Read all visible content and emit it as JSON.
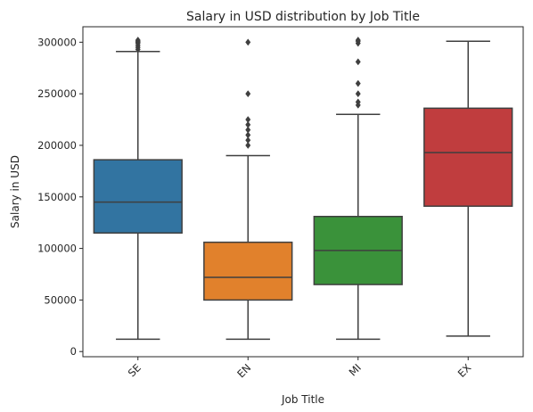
{
  "chart_data": {
    "type": "box",
    "title": "Salary in USD distribution by Job Title",
    "xlabel": "Job Title",
    "ylabel": "Salary in USD",
    "ylim": [
      -5000,
      315000
    ],
    "yticks": [
      0,
      50000,
      100000,
      150000,
      200000,
      250000,
      300000
    ],
    "ytick_labels": [
      "0",
      "50000",
      "100000",
      "150000",
      "200000",
      "250000",
      "300000"
    ],
    "grid": false,
    "categories": [
      "SE",
      "EN",
      "MI",
      "EX"
    ],
    "boxes": [
      {
        "name": "SE",
        "color": "#3274a1",
        "whisker_low": 12000,
        "q1": 115000,
        "median": 145000,
        "q3": 186000,
        "whisker_high": 291000,
        "outliers": [
          293000,
          295000,
          297000,
          299000,
          300000,
          301000,
          302000
        ]
      },
      {
        "name": "EN",
        "color": "#e1812c",
        "whisker_low": 12000,
        "q1": 50000,
        "median": 72000,
        "q3": 106000,
        "whisker_high": 190000,
        "outliers": [
          200000,
          205000,
          210000,
          215000,
          220000,
          225000,
          250000,
          300000
        ]
      },
      {
        "name": "MI",
        "color": "#3a923a",
        "whisker_low": 12000,
        "q1": 65000,
        "median": 98000,
        "q3": 131000,
        "whisker_high": 230000,
        "outliers": [
          239000,
          242000,
          250000,
          260000,
          281000,
          299000,
          301000,
          302000
        ]
      },
      {
        "name": "EX",
        "color": "#c03d3e",
        "whisker_low": 15000,
        "q1": 141000,
        "median": 193000,
        "q3": 236000,
        "whisker_high": 301000,
        "outliers": []
      }
    ],
    "line_color": "#3f3f3f"
  }
}
